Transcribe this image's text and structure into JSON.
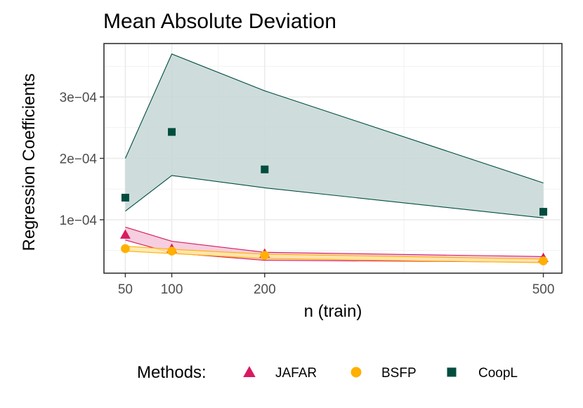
{
  "chart_data": {
    "type": "line",
    "title": "Mean Absolute Deviation",
    "xlabel": "n (train)",
    "ylabel": "Regression Coefficients",
    "x": [
      50,
      100,
      200,
      500
    ],
    "x_ticks": [
      50,
      100,
      200,
      500
    ],
    "x_tick_labels": [
      "50",
      "100",
      "200",
      "500"
    ],
    "y_ticks": [
      0.0001,
      0.0002,
      0.0003
    ],
    "y_tick_labels": [
      "1e−04",
      "2e−04",
      "3e−04"
    ],
    "xlim": [
      27,
      520
    ],
    "ylim": [
      1.3e-05,
      0.000387
    ],
    "grid": true,
    "legend": {
      "title": "Methods:",
      "position": "bottom"
    },
    "series": [
      {
        "name": "CoopL",
        "color": "#004D40",
        "fill": "#C6D7D5",
        "marker": "square",
        "values": [
          0.000136,
          0.000243,
          0.000182,
          0.000113
        ],
        "upper": [
          0.0002,
          0.00037,
          0.00031,
          0.00016
        ],
        "lower": [
          0.000114,
          0.000172,
          0.000152,
          0.000103
        ]
      },
      {
        "name": "JAFAR",
        "color": "#D81B60",
        "fill": "#F5C6D9",
        "marker": "triangle",
        "values": [
          7.6e-05,
          5.3e-05,
          4.5e-05,
          3.8e-05
        ],
        "upper": [
          8.8e-05,
          6.5e-05,
          4.7e-05,
          4e-05
        ],
        "lower": [
          6.7e-05,
          4.6e-05,
          3.4e-05,
          3.1e-05
        ]
      },
      {
        "name": "BSFP",
        "color": "#FFB000",
        "fill": "#FFE7A8",
        "marker": "circle",
        "values": [
          5.3e-05,
          4.9e-05,
          4.2e-05,
          3.3e-05
        ],
        "upper": [
          5.7e-05,
          5.2e-05,
          4.4e-05,
          3.6e-05
        ],
        "lower": [
          4.9e-05,
          4.5e-05,
          3.7e-05,
          3e-05
        ]
      }
    ],
    "legend_order": [
      "JAFAR",
      "BSFP",
      "CoopL"
    ]
  }
}
